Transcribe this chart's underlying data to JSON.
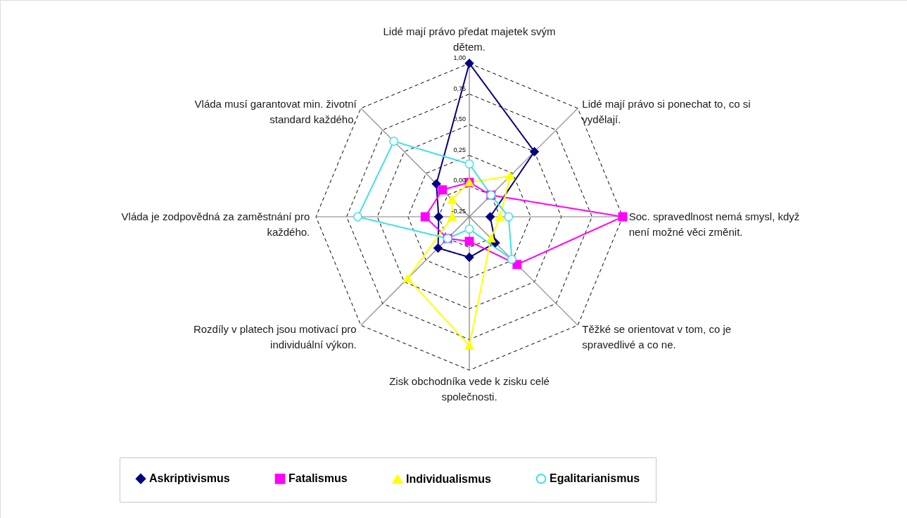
{
  "chart_data": {
    "type": "radar",
    "categories": [
      "Lidé mají právo předat majetek svým dětem.",
      "Lidé mají právo si ponechat to, co si vydělají.",
      "Soc. spravedlnost nemá smysl, když není možné věci změnit.",
      "Těžké se orientovat v tom, co je spravedlivé a co ne.",
      "Zisk obchodníka vede k zisku celé společnosti.",
      "Rozdíly v platech jsou motivací pro individuální výkon.",
      "Vláda je zodpovědná za zaměstnání pro každého.",
      "Vláda musí garantovat min. životní standard každého."
    ],
    "series": [
      {
        "name": "Askriptivismus",
        "color": "#000080",
        "marker": "diamond",
        "values": [
          1.0,
          0.5,
          -0.08,
          0.05,
          0.08,
          0.11,
          0.0,
          0.13
        ]
      },
      {
        "name": "Fatalismus",
        "color": "#ff00ff",
        "marker": "square",
        "values": [
          0.03,
          0.0,
          1.0,
          0.3,
          -0.05,
          0.0,
          0.11,
          0.06
        ]
      },
      {
        "name": "Individualismus",
        "color": "#ffff00",
        "marker": "triangle",
        "values": [
          0.03,
          0.22,
          0.0,
          0.0,
          0.8,
          0.46,
          -0.11,
          -0.05
        ]
      },
      {
        "name": "Egalitarianismus",
        "color": "#40e0e8",
        "marker": "circle",
        "values": [
          0.18,
          0.0,
          0.07,
          0.24,
          -0.15,
          0.0,
          0.66,
          0.62
        ]
      }
    ],
    "ylim": [
      -0.25,
      1.0
    ],
    "yticks": [
      {
        "value": -0.25,
        "label": "-0,25"
      },
      {
        "value": 0.0,
        "label": "0,00"
      },
      {
        "value": 0.25,
        "label": "0,25"
      },
      {
        "value": 0.5,
        "label": "0,50"
      },
      {
        "value": 0.75,
        "label": "0,75"
      },
      {
        "value": 1.0,
        "label": "1,00"
      }
    ],
    "grid": true,
    "line_style": "solid",
    "legend": "bottom"
  }
}
